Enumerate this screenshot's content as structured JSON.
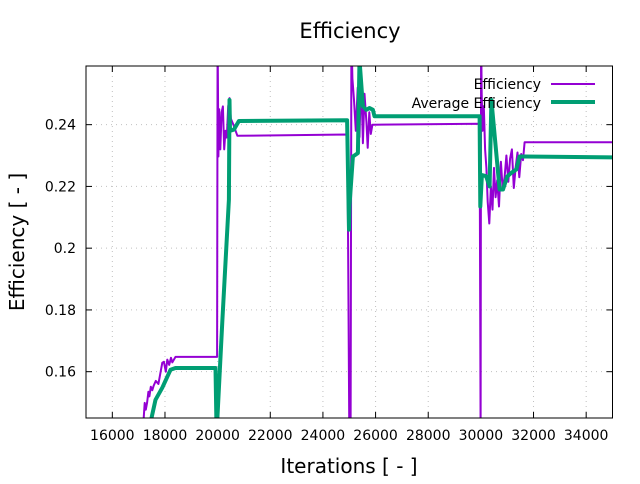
{
  "chart_data": {
    "type": "line",
    "title": "Efficiency",
    "xlabel": "Iterations [ - ]",
    "ylabel": "Efficiency [ - ]",
    "xlim": [
      15000,
      35000
    ],
    "ylim": [
      0.145,
      0.259
    ],
    "xticks": [
      16000,
      18000,
      20000,
      22000,
      24000,
      26000,
      28000,
      30000,
      32000,
      34000
    ],
    "xtick_labels": [
      "16000",
      "18000",
      "20000",
      "22000",
      "24000",
      "26000",
      "28000",
      "30000",
      "32000",
      "34000"
    ],
    "yticks": [
      0.16,
      0.18,
      0.2,
      0.22,
      0.24
    ],
    "ytick_labels": [
      "0.16",
      "0.18",
      "0.2",
      "0.22",
      "0.24"
    ],
    "grid": true,
    "legend_position": "top-right",
    "series": [
      {
        "name": "Efficiency",
        "color": "#9400d3",
        "x": [
          17190,
          17230,
          17270,
          17320,
          17370,
          17410,
          17460,
          17520,
          17570,
          17650,
          17750,
          17900,
          17960,
          18030,
          18090,
          18160,
          18230,
          18280,
          18400,
          18510,
          19980,
          20000,
          20030,
          20060,
          20100,
          20150,
          20200,
          20250,
          20300,
          20350,
          20400,
          20450,
          20500,
          20600,
          20750,
          24930,
          25000,
          25020,
          25050,
          25080,
          25120,
          25180,
          25250,
          25320,
          25390,
          25450,
          25520,
          25580,
          25650,
          25700,
          25760,
          25820,
          25880,
          29950,
          29990,
          30010,
          30030,
          30060,
          30110,
          30160,
          30210,
          30260,
          30320,
          30380,
          30440,
          30500,
          30560,
          30620,
          30690,
          30760,
          30830,
          30900,
          30970,
          31040,
          31110,
          31180,
          31250,
          31320,
          31390,
          31460,
          31530,
          31600,
          31660,
          35000
        ],
        "y": [
          0.145,
          0.1499,
          0.1477,
          0.15,
          0.1535,
          0.152,
          0.1551,
          0.154,
          0.1555,
          0.157,
          0.156,
          0.1629,
          0.1632,
          0.16,
          0.1639,
          0.1622,
          0.1645,
          0.163,
          0.1648,
          0.1648,
          0.1648,
          0.27,
          0.2297,
          0.245,
          0.232,
          0.244,
          0.2459,
          0.232,
          0.238,
          0.2358,
          0.246,
          0.2486,
          0.242,
          0.24,
          0.2364,
          0.2368,
          0.14,
          0.152,
          0.14,
          0.27,
          0.255,
          0.248,
          0.238,
          0.252,
          0.236,
          0.256,
          0.234,
          0.25,
          0.241,
          0.2325,
          0.244,
          0.237,
          0.24,
          0.2403,
          0.14,
          0.27,
          0.25,
          0.238,
          0.246,
          0.232,
          0.226,
          0.215,
          0.208,
          0.22,
          0.2125,
          0.226,
          0.2165,
          0.222,
          0.2135,
          0.228,
          0.219,
          0.223,
          0.23,
          0.2215,
          0.229,
          0.232,
          0.2195,
          0.226,
          0.231,
          0.223,
          0.2305,
          0.2285,
          0.2343,
          0.2343
        ]
      },
      {
        "name": "Average Efficiency",
        "color": "#009e73",
        "x": [
          17490,
          17640,
          17900,
          18210,
          18400,
          19920,
          19960,
          20180,
          20430,
          20450,
          20470,
          20620,
          20810,
          24920,
          24990,
          25010,
          25140,
          25330,
          25390,
          25520,
          25650,
          25770,
          25900,
          25960,
          29950,
          29980,
          30040,
          30200,
          30330,
          30400,
          30530,
          30710,
          30840,
          31000,
          31160,
          31350,
          31470,
          31660,
          35000
        ],
        "y": [
          0.145,
          0.1509,
          0.1548,
          0.1606,
          0.1612,
          0.1612,
          0.14,
          0.1768,
          0.2157,
          0.248,
          0.238,
          0.2384,
          0.2412,
          0.2414,
          0.206,
          0.2138,
          0.2297,
          0.2308,
          0.261,
          0.2459,
          0.2448,
          0.2454,
          0.2448,
          0.2427,
          0.2427,
          0.2135,
          0.2237,
          0.2233,
          0.22,
          0.248,
          0.236,
          0.219,
          0.219,
          0.2232,
          0.2244,
          0.2255,
          0.2297,
          0.2297,
          0.2294
        ]
      }
    ]
  }
}
